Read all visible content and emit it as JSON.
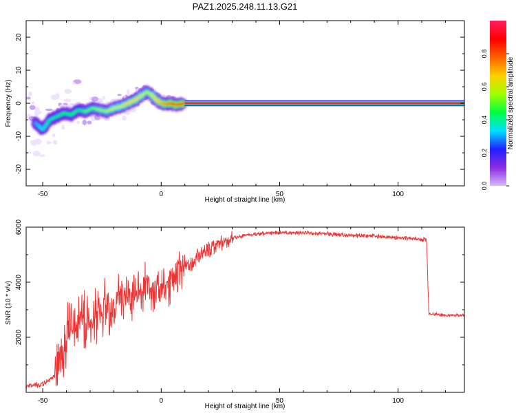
{
  "figure_title": "PAZ1.2025.248.11.13.G21",
  "chart_data": [
    {
      "type": "heatmap",
      "title": "PAZ1.2025.248.11.13.G21",
      "xlabel": "Height of straight line (km)",
      "ylabel": "Frequency (Hz)",
      "xlim": [
        -57,
        128
      ],
      "ylim": [
        -25,
        25
      ],
      "xticks": [
        -50,
        0,
        50,
        100
      ],
      "yticks": [
        -20,
        -10,
        0,
        10,
        20
      ],
      "colorbar": {
        "label": "Normalized spectral amplitude",
        "range": [
          0,
          1
        ],
        "ticks": [
          "0.0",
          "0.2",
          "0.4",
          "0.6",
          "0.8"
        ],
        "colormap": [
          "#d8b8ff",
          "#8a2be2",
          "#2020ff",
          "#00e0ff",
          "#00ff40",
          "#a0ff00",
          "#ffd000",
          "#ff6000",
          "#ff0000",
          "#ff2060"
        ]
      },
      "ridge": {
        "x": [
          -53,
          -50,
          -47,
          -44,
          -41,
          -38,
          -35,
          -32,
          -29,
          -26,
          -23,
          -20,
          -17,
          -14,
          -11,
          -8,
          -6,
          -4,
          -2,
          0,
          2,
          4,
          6,
          8,
          10,
          128
        ],
        "y": [
          -6,
          -8,
          -5,
          -4,
          -3,
          -3.5,
          -2,
          -2.5,
          -1.5,
          -2,
          -2.5,
          -1.5,
          -1,
          0,
          1,
          2.5,
          3.5,
          2.5,
          1,
          0,
          -0.3,
          0,
          -0.5,
          -0.3,
          0,
          0
        ],
        "amplitude": [
          0.3,
          0.35,
          0.4,
          0.4,
          0.45,
          0.45,
          0.4,
          0.5,
          0.5,
          0.55,
          0.55,
          0.6,
          0.6,
          0.65,
          0.65,
          0.6,
          0.55,
          0.6,
          0.65,
          0.7,
          0.75,
          0.8,
          0.85,
          0.85,
          0.9,
          0.95
        ]
      }
    },
    {
      "type": "line",
      "xlabel": "Height of straight line (km)",
      "ylabel": "SNR (10 * v/v)",
      "xlim": [
        -57,
        128
      ],
      "ylim": [
        0,
        6000
      ],
      "xticks": [
        -50,
        0,
        50,
        100
      ],
      "yticks": [
        2000,
        4000,
        6000
      ],
      "series": [
        {
          "color": "#ee3333",
          "x": [
            -57,
            -50,
            -45,
            -42,
            -40,
            -38,
            -36,
            -34,
            -32,
            -30,
            -28,
            -26,
            -24,
            -22,
            -20,
            -18,
            -16,
            -14,
            -12,
            -10,
            -8,
            -6,
            -4,
            -2,
            0,
            2,
            4,
            6,
            8,
            10,
            12,
            15,
            20,
            25,
            30,
            35,
            40,
            50,
            60,
            70,
            80,
            90,
            100,
            105,
            110,
            112,
            113,
            115,
            120,
            128
          ],
          "y": [
            200,
            300,
            600,
            1200,
            2000,
            2800,
            2300,
            3200,
            2400,
            2900,
            2800,
            2600,
            3200,
            2900,
            3100,
            3400,
            3300,
            3600,
            3400,
            3900,
            3600,
            4100,
            3500,
            3800,
            3600,
            3900,
            3800,
            4300,
            4400,
            4700,
            4600,
            4900,
            5200,
            5400,
            5600,
            5700,
            5750,
            5800,
            5800,
            5750,
            5700,
            5680,
            5600,
            5600,
            5550,
            5550,
            2850,
            2850,
            2800,
            2800
          ]
        }
      ]
    }
  ]
}
